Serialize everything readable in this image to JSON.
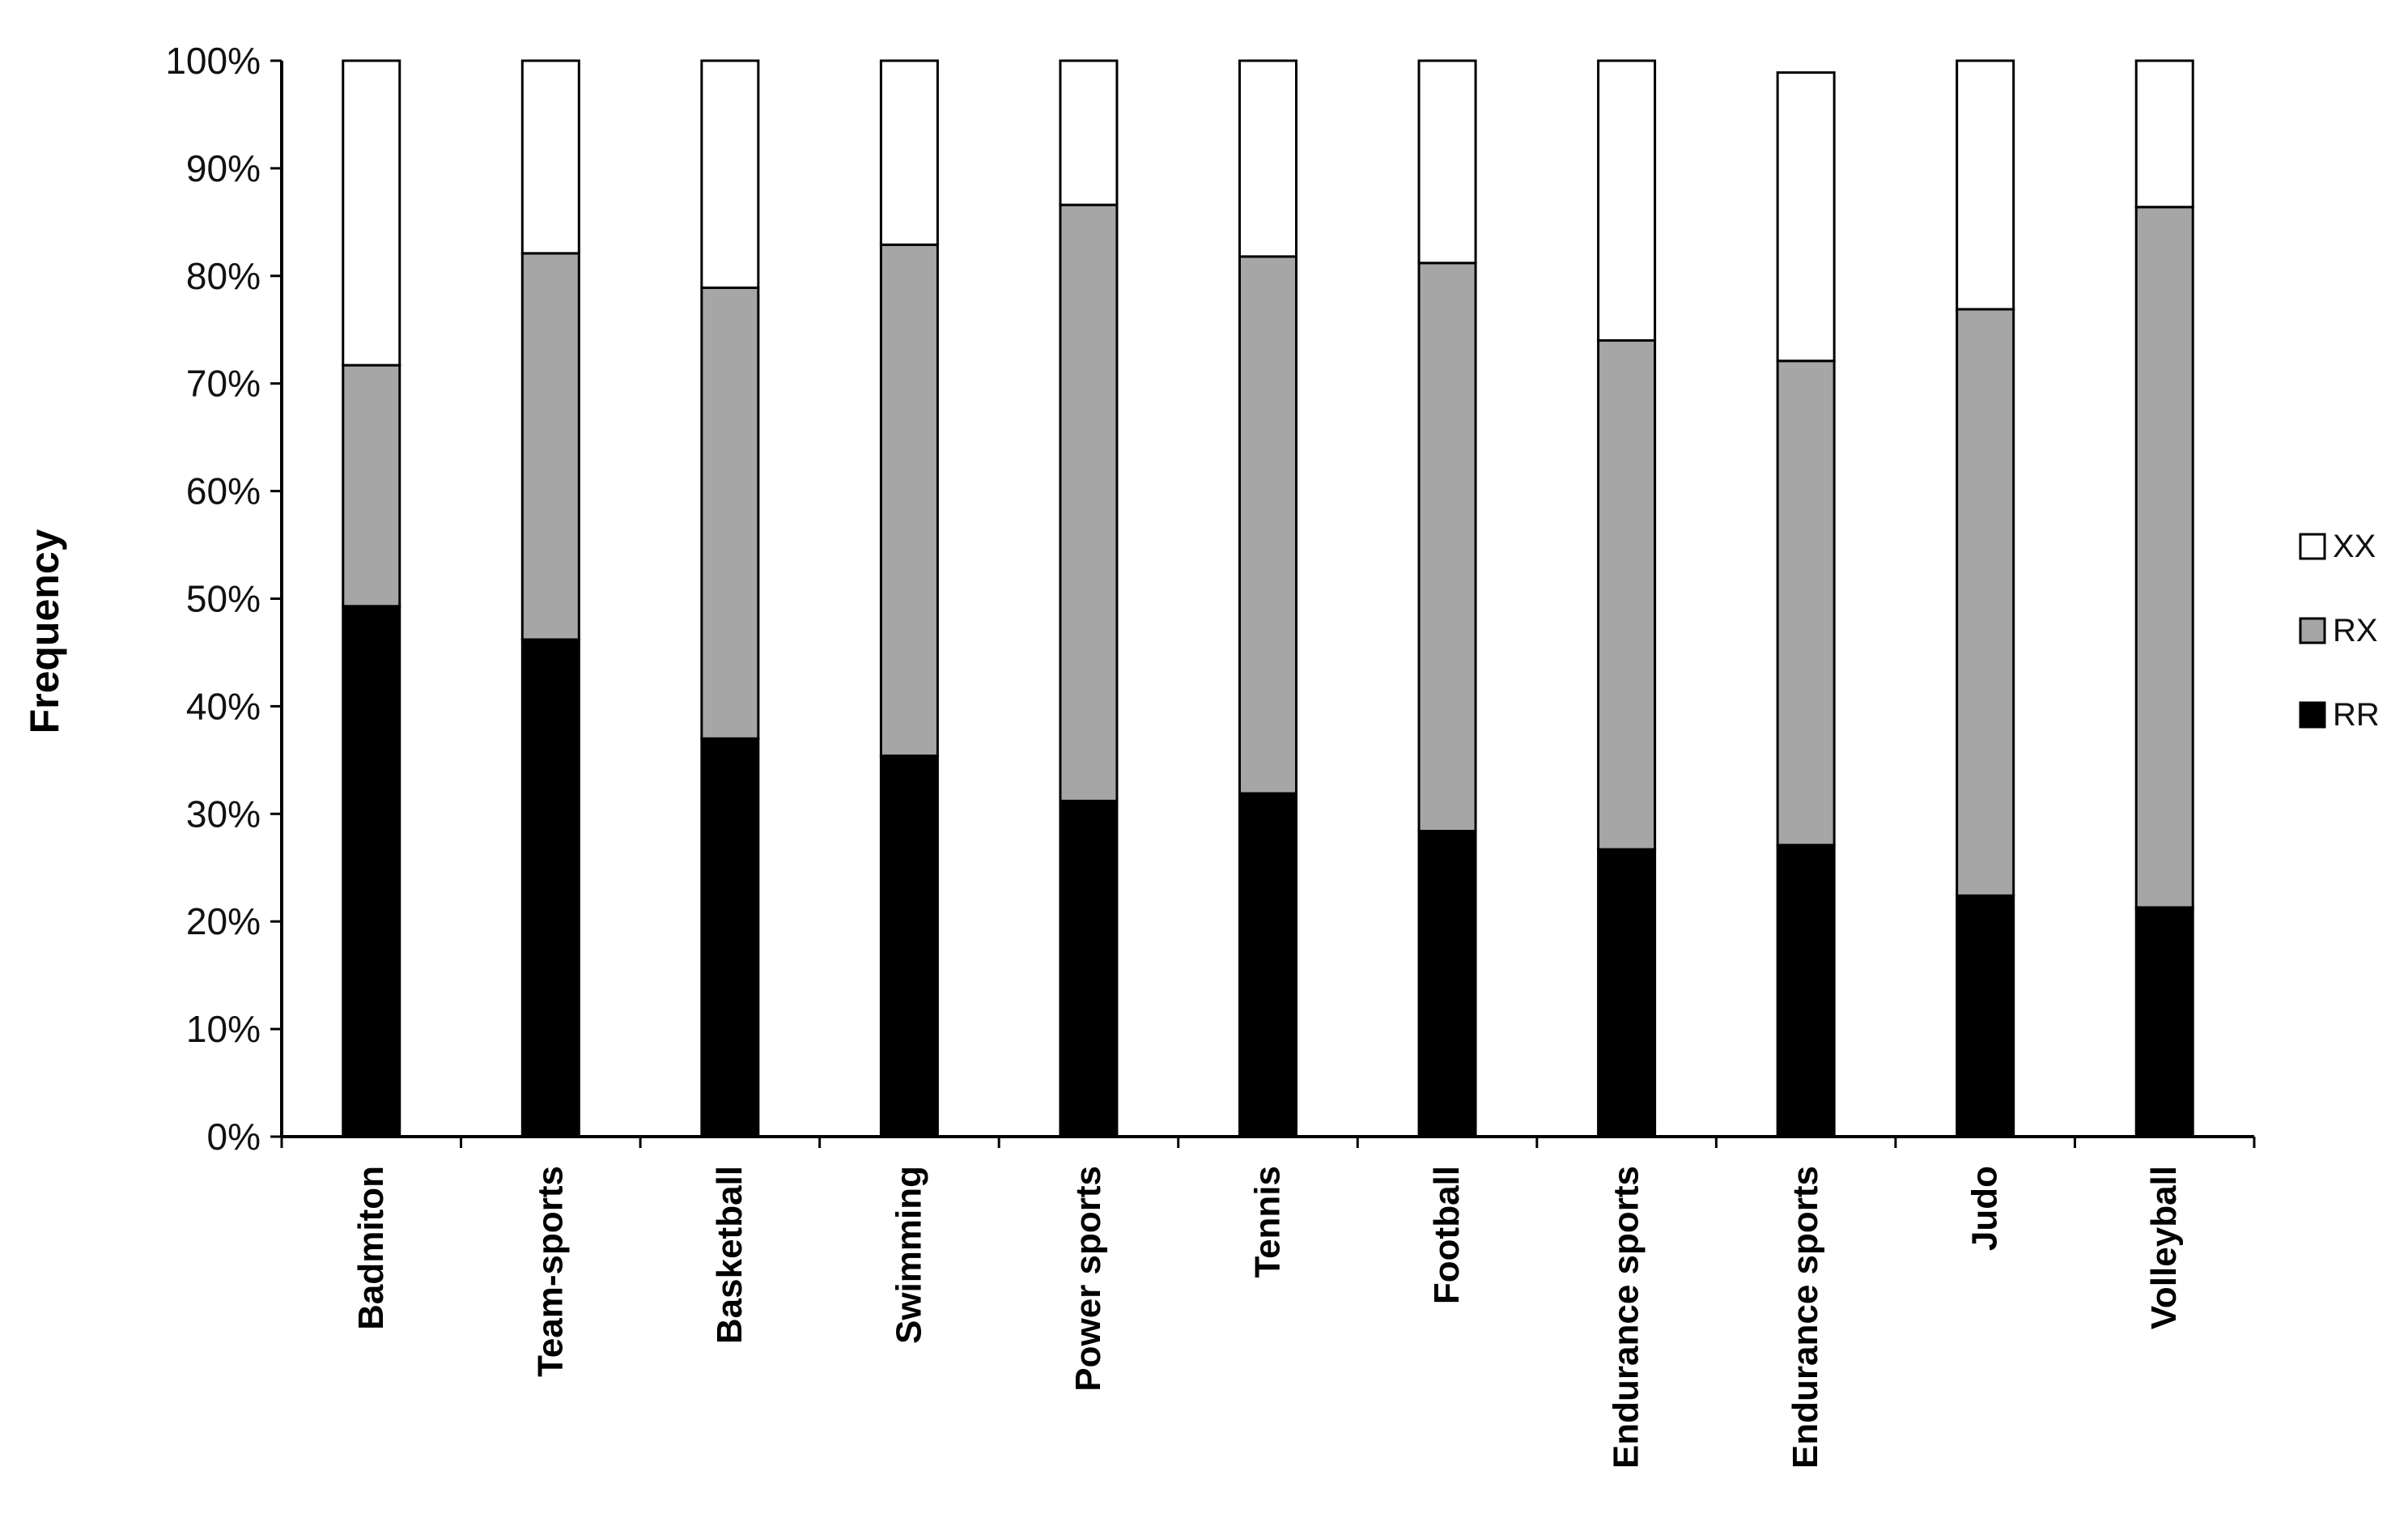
{
  "chart_data": {
    "type": "bar",
    "stacked": true,
    "title": "",
    "xlabel": "",
    "ylabel": "Frequency",
    "ylim": [
      0,
      100
    ],
    "y_ticks": [
      "0%",
      "10%",
      "20%",
      "30%",
      "40%",
      "50%",
      "60%",
      "70%",
      "80%",
      "90%",
      "100%"
    ],
    "grid": false,
    "legend_position": "right",
    "categories": [
      "Badmiton",
      "Team-sports",
      "Basketball",
      "Swimming",
      "Power sports",
      "Tennis",
      "Football",
      "Endurance sports",
      "Endurance sports",
      "Judo",
      "Volleyball"
    ],
    "series": [
      {
        "name": "RR",
        "color": "#000000",
        "values": [
          49.3,
          46.2,
          37.0,
          35.4,
          31.2,
          31.9,
          28.4,
          26.7,
          27.1,
          22.4,
          21.3
        ]
      },
      {
        "name": "RX",
        "color": "#a6a6a6",
        "values": [
          22.4,
          35.9,
          41.9,
          47.5,
          55.4,
          49.9,
          52.8,
          47.3,
          45.0,
          54.5,
          65.1
        ]
      },
      {
        "name": "XX",
        "color": "#ffffff",
        "values": [
          28.3,
          17.9,
          21.1,
          17.1,
          13.4,
          18.2,
          18.8,
          26.0,
          26.8,
          23.1,
          13.6
        ]
      }
    ],
    "legend_order": [
      "XX",
      "RX",
      "RR"
    ]
  }
}
